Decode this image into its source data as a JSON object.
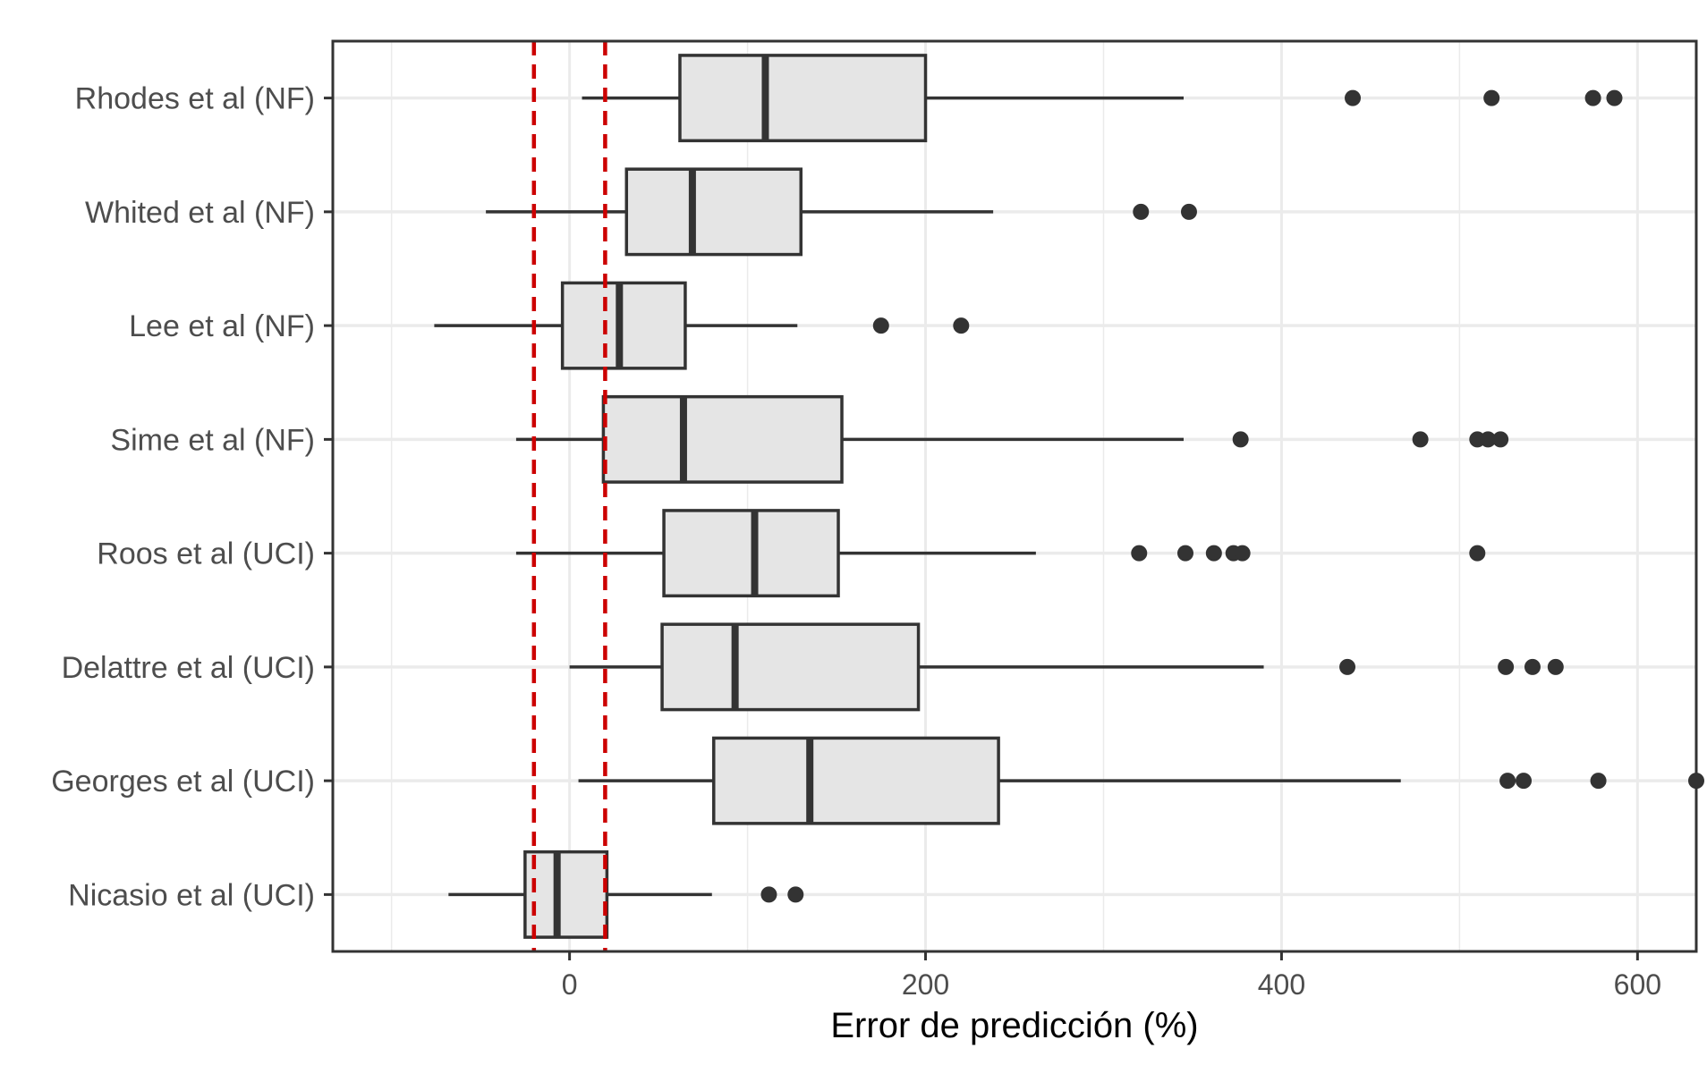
{
  "chart_data": {
    "type": "boxplot",
    "orientation": "horizontal",
    "title": "",
    "xlabel": "Error de predicción (%)",
    "ylabel": "",
    "xlim": [
      -133,
      633
    ],
    "xticks": [
      0,
      200,
      400,
      600
    ],
    "grid": true,
    "reference_lines": [
      -20,
      20
    ],
    "colors": {
      "box_fill": "#e5e5e5",
      "box_stroke": "#333333",
      "reference_line": "#cc0000",
      "grid": "#ebebeb",
      "outlier": "#333333"
    },
    "categories": [
      "Rhodes et al (NF)",
      "Whited et al (NF)",
      "Lee et al (NF)",
      "Sime et al (NF)",
      "Roos et al (UCI)",
      "Delattre et al (UCI)",
      "Georges et al (UCI)",
      "Nicasio et al (UCI)"
    ],
    "boxes": [
      {
        "category": "Rhodes et al (NF)",
        "whisker_low": 7,
        "q1": 62,
        "median": 110,
        "q3": 200,
        "whisker_high": 345,
        "outliers": [
          440,
          518,
          575,
          587
        ]
      },
      {
        "category": "Whited et al (NF)",
        "whisker_low": -47,
        "q1": 32,
        "median": 69,
        "q3": 130,
        "whisker_high": 238,
        "outliers": [
          321,
          348
        ]
      },
      {
        "category": "Lee et al (NF)",
        "whisker_low": -76,
        "q1": -4,
        "median": 28,
        "q3": 65,
        "whisker_high": 128,
        "outliers": [
          175,
          220
        ]
      },
      {
        "category": "Sime et al (NF)",
        "whisker_low": -30,
        "q1": 19,
        "median": 64,
        "q3": 153,
        "whisker_high": 345,
        "outliers": [
          377,
          478,
          510,
          516,
          523
        ]
      },
      {
        "category": "Roos et al (UCI)",
        "whisker_low": -30,
        "q1": 53,
        "median": 104,
        "q3": 151,
        "whisker_high": 262,
        "outliers": [
          320,
          346,
          362,
          373,
          378,
          510
        ]
      },
      {
        "category": "Delattre et al (UCI)",
        "whisker_low": 0,
        "q1": 52,
        "median": 93,
        "q3": 196,
        "whisker_high": 390,
        "outliers": [
          437,
          526,
          541,
          554
        ]
      },
      {
        "category": "Georges et al (UCI)",
        "whisker_low": 5,
        "q1": 81,
        "median": 135,
        "q3": 241,
        "whisker_high": 467,
        "outliers": [
          527,
          536,
          578,
          633
        ]
      },
      {
        "category": "Nicasio et al (UCI)",
        "whisker_low": -68,
        "q1": -25,
        "median": -7,
        "q3": 21,
        "whisker_high": 80,
        "outliers": [
          112,
          127
        ]
      }
    ]
  }
}
